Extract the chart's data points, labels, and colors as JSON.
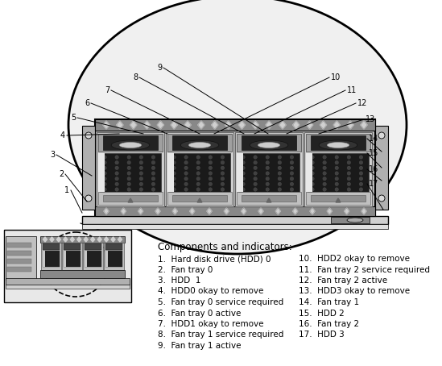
{
  "bg_color": "#ffffff",
  "fig_width": 5.49,
  "fig_height": 4.54,
  "title_text": "Components and indicators:",
  "legend_left": [
    "1.  Hard disk drive (HDD) 0",
    "2.  Fan tray 0",
    "3.  HDD  1",
    "4.  HDD0 okay to remove",
    "5.  Fan tray 0 service required",
    "6.  Fan tray 0 active",
    "7.  HDD1 okay to remove",
    "8.  Fan tray 1 service required",
    "9.  Fan tray 1 active"
  ],
  "legend_right": [
    "10.  HDD2 okay to remove",
    "11.  Fan tray 2 service required",
    "12.  Fan tray 2 active",
    "13.  HDD3 okay to remove",
    "14.  Fan tray 1",
    "15.  HDD 2",
    "16.  Fan tray 2",
    "17.  HDD 3"
  ],
  "line_color": "#000000",
  "text_color": "#000000"
}
